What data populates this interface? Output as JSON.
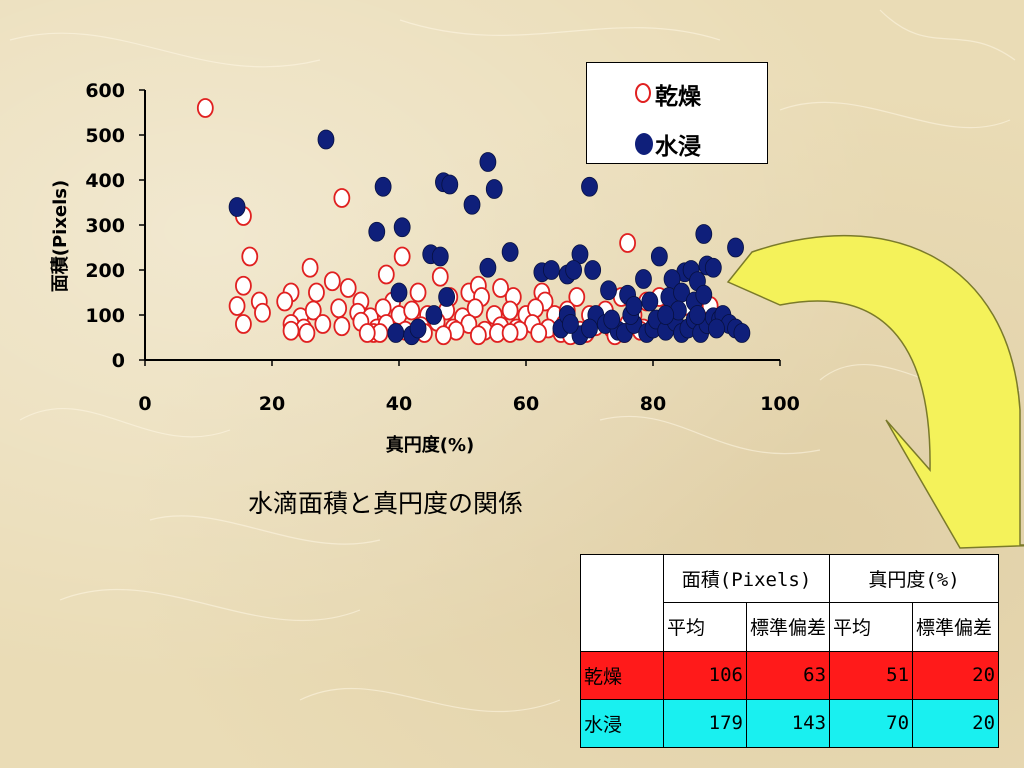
{
  "caption": "水滴面積と真円度の関係",
  "legend": [
    {
      "label": "乾燥",
      "style": "open",
      "color": "#e02020"
    },
    {
      "label": "水浸",
      "style": "filled",
      "color": "#0f1f7a"
    }
  ],
  "table": {
    "group_headers": [
      "面積(Pixels)",
      "真円度(%)"
    ],
    "sub_headers": [
      "平均",
      "標準偏差",
      "平均",
      "標準偏差"
    ],
    "rows": [
      {
        "label": "乾燥",
        "values": [
          "106",
          "63",
          "51",
          "20"
        ],
        "color": "#ff1a1a"
      },
      {
        "label": "水浸",
        "values": [
          "179",
          "143",
          "70",
          "20"
        ],
        "color": "#19f0f0"
      }
    ]
  },
  "arrow_color": "#f4f25a",
  "chart_data": {
    "type": "scatter",
    "xlabel": "真円度(%)",
    "ylabel": "面積(Pixels)",
    "xlim": [
      0,
      100
    ],
    "ylim": [
      0,
      600
    ],
    "xticks": [
      "0",
      "20",
      "40",
      "60",
      "80",
      "100"
    ],
    "yticks": [
      "0",
      "100",
      "200",
      "300",
      "400",
      "500",
      "600"
    ],
    "grid": false,
    "series": [
      {
        "name": "乾燥",
        "marker": "open-circle",
        "color": "#e02020",
        "points": [
          [
            9.5,
            560
          ],
          [
            15.5,
            320
          ],
          [
            31,
            360
          ],
          [
            76,
            260
          ],
          [
            16.5,
            230
          ],
          [
            40.5,
            230
          ],
          [
            26,
            205
          ],
          [
            38,
            190
          ],
          [
            46.5,
            185
          ],
          [
            29.5,
            175
          ],
          [
            32,
            160
          ],
          [
            15.5,
            165
          ],
          [
            23,
            150
          ],
          [
            51,
            150
          ],
          [
            56,
            160
          ],
          [
            62.5,
            150
          ],
          [
            52.5,
            165
          ],
          [
            18,
            130
          ],
          [
            22,
            130
          ],
          [
            27,
            150
          ],
          [
            34,
            130
          ],
          [
            39,
            130
          ],
          [
            43,
            150
          ],
          [
            48,
            140
          ],
          [
            53,
            140
          ],
          [
            58,
            140
          ],
          [
            63,
            130
          ],
          [
            68,
            140
          ],
          [
            75,
            140
          ],
          [
            79,
            130
          ],
          [
            81,
            140
          ],
          [
            85,
            120
          ],
          [
            89,
            120
          ],
          [
            14.5,
            120
          ],
          [
            18.5,
            105
          ],
          [
            24.5,
            95
          ],
          [
            26.5,
            110
          ],
          [
            30.5,
            115
          ],
          [
            33.5,
            105
          ],
          [
            35.5,
            95
          ],
          [
            37.5,
            115
          ],
          [
            40,
            100
          ],
          [
            42,
            110
          ],
          [
            44.5,
            100
          ],
          [
            47.5,
            110
          ],
          [
            50,
            95
          ],
          [
            52,
            115
          ],
          [
            55,
            100
          ],
          [
            57.5,
            110
          ],
          [
            60,
            100
          ],
          [
            61.5,
            115
          ],
          [
            64.5,
            100
          ],
          [
            66.5,
            110
          ],
          [
            70,
            100
          ],
          [
            72.5,
            110
          ],
          [
            77,
            100
          ],
          [
            15.5,
            80
          ],
          [
            23,
            80
          ],
          [
            25,
            70
          ],
          [
            28,
            80
          ],
          [
            31,
            75
          ],
          [
            34,
            85
          ],
          [
            36.5,
            70
          ],
          [
            38,
            80
          ],
          [
            41,
            65
          ],
          [
            43.5,
            75
          ],
          [
            46,
            85
          ],
          [
            48.5,
            70
          ],
          [
            51,
            80
          ],
          [
            53.5,
            65
          ],
          [
            56,
            75
          ],
          [
            58.5,
            70
          ],
          [
            61,
            80
          ],
          [
            63.5,
            70
          ],
          [
            66,
            80
          ],
          [
            68.5,
            65
          ],
          [
            71,
            75
          ],
          [
            73.5,
            70
          ],
          [
            76,
            80
          ],
          [
            78.5,
            70
          ],
          [
            81,
            85
          ],
          [
            23,
            65
          ],
          [
            25.5,
            60
          ],
          [
            36,
            60
          ],
          [
            44,
            60
          ],
          [
            49,
            65
          ],
          [
            55.5,
            60
          ],
          [
            59,
            65
          ],
          [
            65.5,
            60
          ],
          [
            69.5,
            60
          ],
          [
            75.5,
            60
          ],
          [
            78,
            65
          ],
          [
            37,
            60
          ],
          [
            47,
            55
          ],
          [
            52.5,
            55
          ],
          [
            57.5,
            60
          ],
          [
            67,
            55
          ],
          [
            35,
            60
          ],
          [
            62,
            60
          ],
          [
            74,
            55
          ]
        ]
      },
      {
        "name": "水浸",
        "marker": "filled-circle",
        "color": "#0f1f7a",
        "points": [
          [
            28.5,
            490
          ],
          [
            14.5,
            340
          ],
          [
            54,
            440
          ],
          [
            37.5,
            385
          ],
          [
            47,
            395
          ],
          [
            48,
            390
          ],
          [
            55,
            380
          ],
          [
            70,
            385
          ],
          [
            51.5,
            345
          ],
          [
            36.5,
            285
          ],
          [
            40.5,
            295
          ],
          [
            88,
            280
          ],
          [
            45,
            235
          ],
          [
            46.5,
            230
          ],
          [
            57.5,
            240
          ],
          [
            68.5,
            235
          ],
          [
            81,
            230
          ],
          [
            93,
            250
          ],
          [
            54,
            205
          ],
          [
            62.5,
            195
          ],
          [
            64,
            200
          ],
          [
            66.5,
            190
          ],
          [
            67.5,
            200
          ],
          [
            70.5,
            200
          ],
          [
            85,
            195
          ],
          [
            86,
            200
          ],
          [
            88.5,
            210
          ],
          [
            89.5,
            205
          ],
          [
            78.5,
            180
          ],
          [
            83,
            180
          ],
          [
            87,
            175
          ],
          [
            40,
            150
          ],
          [
            47.5,
            140
          ],
          [
            73,
            155
          ],
          [
            76,
            145
          ],
          [
            79.5,
            130
          ],
          [
            82.5,
            140
          ],
          [
            84.5,
            150
          ],
          [
            86.5,
            130
          ],
          [
            88,
            145
          ],
          [
            39.5,
            60
          ],
          [
            42,
            55
          ],
          [
            43,
            70
          ],
          [
            45.5,
            100
          ],
          [
            65.5,
            70
          ],
          [
            66.5,
            100
          ],
          [
            68.5,
            55
          ],
          [
            71,
            100
          ],
          [
            72.5,
            80
          ],
          [
            74.5,
            65
          ],
          [
            75.5,
            60
          ],
          [
            77,
            80
          ],
          [
            79,
            60
          ],
          [
            80,
            70
          ],
          [
            80.5,
            90
          ],
          [
            82,
            65
          ],
          [
            83.5,
            85
          ],
          [
            84.5,
            60
          ],
          [
            85.5,
            70
          ],
          [
            86.5,
            90
          ],
          [
            87.5,
            60
          ],
          [
            88.5,
            80
          ],
          [
            89.5,
            95
          ],
          [
            90.5,
            90
          ],
          [
            91,
            100
          ],
          [
            92,
            80
          ],
          [
            93,
            70
          ],
          [
            94,
            60
          ],
          [
            90,
            70
          ],
          [
            87,
            100
          ],
          [
            84,
            110
          ],
          [
            82,
            100
          ],
          [
            76.5,
            100
          ],
          [
            73.5,
            90
          ],
          [
            70,
            70
          ],
          [
            67,
            80
          ],
          [
            77,
            120
          ]
        ]
      }
    ]
  }
}
